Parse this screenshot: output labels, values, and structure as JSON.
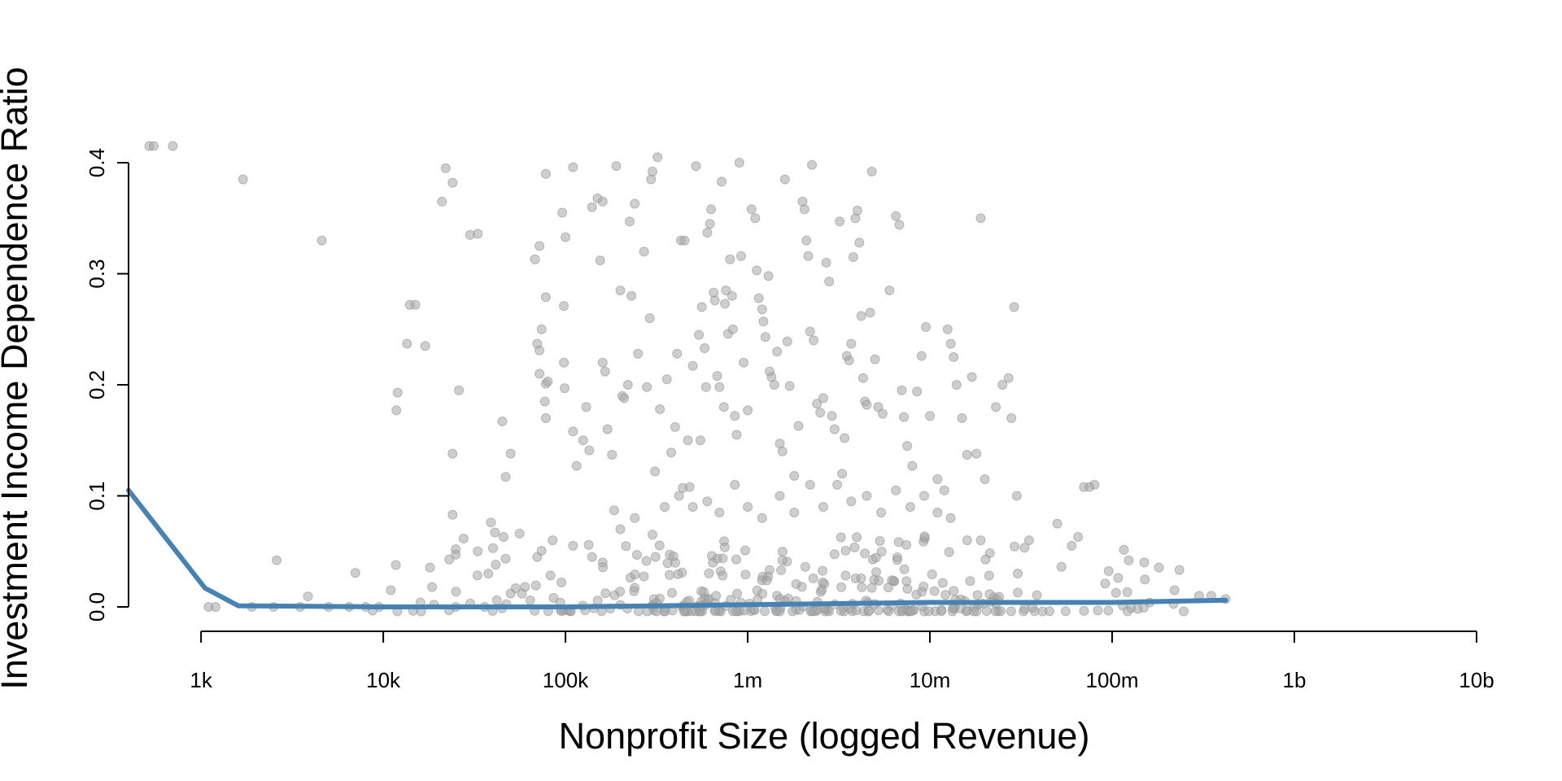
{
  "chart_data": {
    "type": "scatter",
    "title": "",
    "xlabel": "Nonprofit Size (logged Revenue)",
    "ylabel": "Investment Income Dependence Ratio",
    "x_scale": "log10",
    "xlim": [
      400,
      10000000000
    ],
    "ylim": [
      -0.02,
      0.42
    ],
    "x_ticks": [
      1000,
      10000,
      100000,
      1000000,
      10000000,
      100000000,
      1000000000,
      10000000000
    ],
    "x_tick_labels": [
      "1k",
      "10k",
      "100k",
      "1m",
      "10m",
      "100m",
      "1b",
      "10b"
    ],
    "y_ticks": [
      0.0,
      0.1,
      0.2,
      0.3,
      0.4
    ],
    "y_tick_labels": [
      "0.0",
      "0.1",
      "0.2",
      "0.3",
      "0.4"
    ],
    "grid": false,
    "legend": "none",
    "colors": {
      "points": "#a6a6a6",
      "trend": "#4682b4"
    },
    "series": [
      {
        "type": "scatter",
        "points": [
          [
            520,
            0.415
          ],
          [
            550,
            0.415
          ],
          [
            700,
            0.415
          ],
          [
            1700,
            0.385
          ],
          [
            4600,
            0.33
          ],
          [
            22000,
            0.395
          ],
          [
            21000,
            0.365
          ],
          [
            24000,
            0.382
          ],
          [
            30000,
            0.335
          ],
          [
            33000,
            0.336
          ],
          [
            14000,
            0.272
          ],
          [
            15000,
            0.272
          ],
          [
            12000,
            0.193
          ],
          [
            11800,
            0.177
          ],
          [
            13500,
            0.237
          ],
          [
            17000,
            0.235
          ],
          [
            26000,
            0.195
          ],
          [
            24000,
            0.138
          ],
          [
            24000,
            0.083
          ],
          [
            2600,
            0.042
          ],
          [
            25000,
            0.052
          ],
          [
            25000,
            0.047
          ],
          [
            33000,
            0.05
          ],
          [
            41000,
            0.067
          ],
          [
            39000,
            0.076
          ],
          [
            45000,
            0.167
          ],
          [
            47000,
            0.117
          ],
          [
            50000,
            0.138
          ],
          [
            56000,
            0.066
          ],
          [
            68000,
            0.313
          ],
          [
            72000,
            0.325
          ],
          [
            70000,
            0.237
          ],
          [
            72000,
            0.231
          ],
          [
            74000,
            0.25
          ],
          [
            72000,
            0.21
          ],
          [
            78000,
            0.201
          ],
          [
            80000,
            0.203
          ],
          [
            78000,
            0.17
          ],
          [
            77000,
            0.185
          ],
          [
            78000,
            0.39
          ],
          [
            78000,
            0.279
          ],
          [
            96000,
            0.355
          ],
          [
            100000,
            0.333
          ],
          [
            98000,
            0.271
          ],
          [
            98000,
            0.22
          ],
          [
            99000,
            0.197
          ],
          [
            110000,
            0.396
          ],
          [
            115000,
            0.127
          ],
          [
            110000,
            0.158
          ],
          [
            125000,
            0.15
          ],
          [
            130000,
            0.18
          ],
          [
            135000,
            0.141
          ],
          [
            140000,
            0.36
          ],
          [
            150000,
            0.368
          ],
          [
            160000,
            0.365
          ],
          [
            155000,
            0.312
          ],
          [
            160000,
            0.22
          ],
          [
            165000,
            0.212
          ],
          [
            170000,
            0.16
          ],
          [
            180000,
            0.137
          ],
          [
            185000,
            0.087
          ],
          [
            190000,
            0.397
          ],
          [
            200000,
            0.285
          ],
          [
            205000,
            0.19
          ],
          [
            210000,
            0.188
          ],
          [
            220000,
            0.2
          ],
          [
            225000,
            0.347
          ],
          [
            230000,
            0.28
          ],
          [
            240000,
            0.363
          ],
          [
            250000,
            0.228
          ],
          [
            270000,
            0.32
          ],
          [
            280000,
            0.198
          ],
          [
            290000,
            0.26
          ],
          [
            295000,
            0.385
          ],
          [
            300000,
            0.392
          ],
          [
            310000,
            0.122
          ],
          [
            320000,
            0.405
          ],
          [
            330000,
            0.178
          ],
          [
            360000,
            0.205
          ],
          [
            380000,
            0.139
          ],
          [
            400000,
            0.162
          ],
          [
            410000,
            0.228
          ],
          [
            430000,
            0.33
          ],
          [
            440000,
            0.107
          ],
          [
            450000,
            0.33
          ],
          [
            470000,
            0.15
          ],
          [
            480000,
            0.108
          ],
          [
            500000,
            0.217
          ],
          [
            520000,
            0.397
          ],
          [
            540000,
            0.245
          ],
          [
            550000,
            0.15
          ],
          [
            560000,
            0.27
          ],
          [
            580000,
            0.233
          ],
          [
            590000,
            0.198
          ],
          [
            600000,
            0.337
          ],
          [
            620000,
            0.345
          ],
          [
            630000,
            0.358
          ],
          [
            650000,
            0.283
          ],
          [
            660000,
            0.276
          ],
          [
            680000,
            0.208
          ],
          [
            700000,
            0.198
          ],
          [
            720000,
            0.383
          ],
          [
            740000,
            0.18
          ],
          [
            750000,
            0.273
          ],
          [
            760000,
            0.285
          ],
          [
            780000,
            0.246
          ],
          [
            800000,
            0.313
          ],
          [
            820000,
            0.28
          ],
          [
            830000,
            0.25
          ],
          [
            850000,
            0.172
          ],
          [
            870000,
            0.155
          ],
          [
            900000,
            0.4
          ],
          [
            920000,
            0.316
          ],
          [
            950000,
            0.22
          ],
          [
            1000000,
            0.177
          ],
          [
            1050000,
            0.358
          ],
          [
            1100000,
            0.35
          ],
          [
            1120000,
            0.303
          ],
          [
            1150000,
            0.278
          ],
          [
            1200000,
            0.268
          ],
          [
            1220000,
            0.257
          ],
          [
            1250000,
            0.243
          ],
          [
            1300000,
            0.298
          ],
          [
            1320000,
            0.212
          ],
          [
            1350000,
            0.207
          ],
          [
            1400000,
            0.2
          ],
          [
            1450000,
            0.23
          ],
          [
            1500000,
            0.147
          ],
          [
            1550000,
            0.14
          ],
          [
            1600000,
            0.385
          ],
          [
            1650000,
            0.239
          ],
          [
            1700000,
            0.199
          ],
          [
            1800000,
            0.118
          ],
          [
            1900000,
            0.163
          ],
          [
            2000000,
            0.365
          ],
          [
            2050000,
            0.358
          ],
          [
            2100000,
            0.33
          ],
          [
            2150000,
            0.316
          ],
          [
            2200000,
            0.248
          ],
          [
            2250000,
            0.398
          ],
          [
            2300000,
            0.24
          ],
          [
            2400000,
            0.183
          ],
          [
            2500000,
            0.175
          ],
          [
            2600000,
            0.188
          ],
          [
            2700000,
            0.31
          ],
          [
            2800000,
            0.293
          ],
          [
            2900000,
            0.172
          ],
          [
            3000000,
            0.16
          ],
          [
            3200000,
            0.347
          ],
          [
            3300000,
            0.12
          ],
          [
            3400000,
            0.152
          ],
          [
            3500000,
            0.226
          ],
          [
            3600000,
            0.222
          ],
          [
            3700000,
            0.237
          ],
          [
            3800000,
            0.315
          ],
          [
            3900000,
            0.35
          ],
          [
            4000000,
            0.357
          ],
          [
            4100000,
            0.328
          ],
          [
            4200000,
            0.262
          ],
          [
            4300000,
            0.206
          ],
          [
            4400000,
            0.185
          ],
          [
            4500000,
            0.182
          ],
          [
            4700000,
            0.265
          ],
          [
            4800000,
            0.392
          ],
          [
            5000000,
            0.223
          ],
          [
            5200000,
            0.18
          ],
          [
            5500000,
            0.174
          ],
          [
            6000000,
            0.285
          ],
          [
            6500000,
            0.352
          ],
          [
            6800000,
            0.344
          ],
          [
            7000000,
            0.195
          ],
          [
            7200000,
            0.171
          ],
          [
            7500000,
            0.145
          ],
          [
            8000000,
            0.127
          ],
          [
            8500000,
            0.194
          ],
          [
            9000000,
            0.226
          ],
          [
            9500000,
            0.252
          ],
          [
            10000000,
            0.172
          ],
          [
            11000000,
            0.115
          ],
          [
            12000000,
            0.105
          ],
          [
            12500000,
            0.25
          ],
          [
            13000000,
            0.237
          ],
          [
            13500000,
            0.225
          ],
          [
            14000000,
            0.2
          ],
          [
            15000000,
            0.17
          ],
          [
            16000000,
            0.137
          ],
          [
            17000000,
            0.207
          ],
          [
            18000000,
            0.138
          ],
          [
            19000000,
            0.35
          ],
          [
            20000000,
            0.115
          ],
          [
            23000000,
            0.18
          ],
          [
            25000000,
            0.2
          ],
          [
            27000000,
            0.206
          ],
          [
            28000000,
            0.17
          ],
          [
            29000000,
            0.27
          ],
          [
            30000000,
            0.1
          ],
          [
            35000000,
            0.06
          ],
          [
            50000000,
            0.075
          ],
          [
            60000000,
            0.055
          ],
          [
            65000000,
            0.063
          ],
          [
            70000000,
            0.108
          ],
          [
            75000000,
            0.108
          ],
          [
            80000000,
            0.11
          ],
          [
            150000000,
            0.04
          ],
          [
            220000000,
            0.015
          ],
          [
            300000000,
            0.01
          ],
          [
            350000000,
            0.01
          ],
          [
            420000000,
            0.007
          ],
          [
            1100,
            0.0
          ],
          [
            1200,
            0.0
          ],
          [
            1900,
            0.0
          ],
          [
            2500,
            0.0
          ],
          [
            3500,
            0.0
          ],
          [
            5000,
            0.0
          ],
          [
            6500,
            0.0
          ],
          [
            8000,
            0.0
          ],
          [
            9500,
            0.0
          ],
          [
            11000,
            0.015
          ],
          [
            16000,
            0.004
          ],
          [
            19000,
            0.002
          ],
          [
            25000,
            0.0
          ],
          [
            30000,
            0.003
          ],
          [
            36000,
            0.0
          ],
          [
            42000,
            0.006
          ],
          [
            50000,
            0.012
          ],
          [
            60000,
            0.018
          ],
          [
            70000,
            0.045
          ],
          [
            85000,
            0.06
          ],
          [
            95000,
            0.022
          ],
          [
            110000,
            0.055
          ],
          [
            140000,
            0.045
          ],
          [
            160000,
            0.04
          ],
          [
            200000,
            0.07
          ],
          [
            240000,
            0.08
          ],
          [
            300000,
            0.065
          ],
          [
            350000,
            0.09
          ],
          [
            420000,
            0.1
          ],
          [
            500000,
            0.09
          ],
          [
            600000,
            0.095
          ],
          [
            700000,
            0.085
          ],
          [
            850000,
            0.11
          ],
          [
            1000000,
            0.09
          ],
          [
            1200000,
            0.08
          ],
          [
            1500000,
            0.1
          ],
          [
            1800000,
            0.085
          ],
          [
            2200000,
            0.11
          ],
          [
            2600000,
            0.09
          ],
          [
            3100000,
            0.11
          ],
          [
            3700000,
            0.095
          ],
          [
            4500000,
            0.1
          ],
          [
            5400000,
            0.085
          ],
          [
            6500000,
            0.105
          ],
          [
            7800000,
            0.09
          ],
          [
            9300000,
            0.1
          ],
          [
            11000000,
            0.085
          ],
          [
            13000000,
            0.08
          ],
          [
            16000000,
            0.06
          ],
          [
            19000000,
            0.06
          ]
        ]
      },
      {
        "type": "line",
        "points": [
          [
            400,
            0.105
          ],
          [
            1050,
            0.017
          ],
          [
            1600,
            0.001
          ],
          [
            10000,
            0.0
          ],
          [
            100000,
            0.0
          ],
          [
            1000000,
            0.002
          ],
          [
            10000000,
            0.004
          ],
          [
            100000000,
            0.004
          ],
          [
            420000000,
            0.006
          ]
        ]
      }
    ]
  }
}
